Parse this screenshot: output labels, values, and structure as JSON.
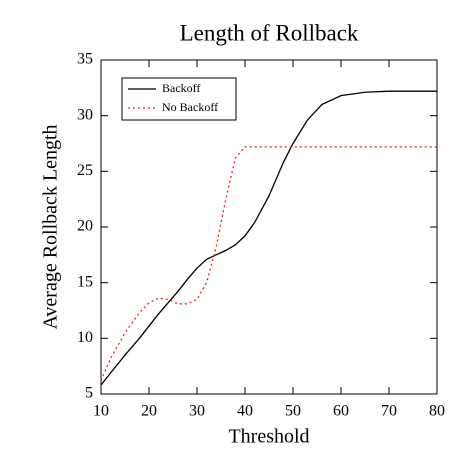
{
  "chart_data": {
    "type": "line",
    "title": "Length of Rollback",
    "xlabel": "Threshold",
    "ylabel": "Average Rollback Length",
    "x": [
      10,
      12,
      15,
      18,
      20,
      22,
      24,
      26,
      28,
      30,
      32,
      34,
      36,
      38,
      40,
      42,
      45,
      48,
      50,
      53,
      56,
      60,
      65,
      70,
      75,
      80
    ],
    "series": [
      {
        "name": "Backoff",
        "color": "#000000",
        "linestyle": "solid",
        "values": [
          5.8,
          6.9,
          8.5,
          10.0,
          11.1,
          12.2,
          13.2,
          14.2,
          15.3,
          16.3,
          17.1,
          17.5,
          17.9,
          18.4,
          19.2,
          20.4,
          22.8,
          25.8,
          27.5,
          29.6,
          31.0,
          31.8,
          32.1,
          32.2,
          32.2,
          32.2
        ]
      },
      {
        "name": "No Backoff",
        "color": "#e8201c",
        "linestyle": "dotted",
        "values": [
          6.2,
          8.2,
          10.5,
          12.3,
          13.2,
          13.6,
          13.5,
          13.1,
          13.1,
          13.5,
          15.0,
          18.2,
          22.5,
          26.2,
          27.2,
          27.2,
          27.2,
          27.2,
          27.2,
          27.2,
          27.2,
          27.2,
          27.2,
          27.2,
          27.2,
          27.2
        ]
      }
    ],
    "xlim": [
      10,
      80
    ],
    "ylim": [
      5,
      35
    ],
    "xticks": [
      10,
      20,
      30,
      40,
      50,
      60,
      70,
      80
    ],
    "yticks": [
      5,
      10,
      15,
      20,
      25,
      30,
      35
    ],
    "legend": "top-left"
  }
}
